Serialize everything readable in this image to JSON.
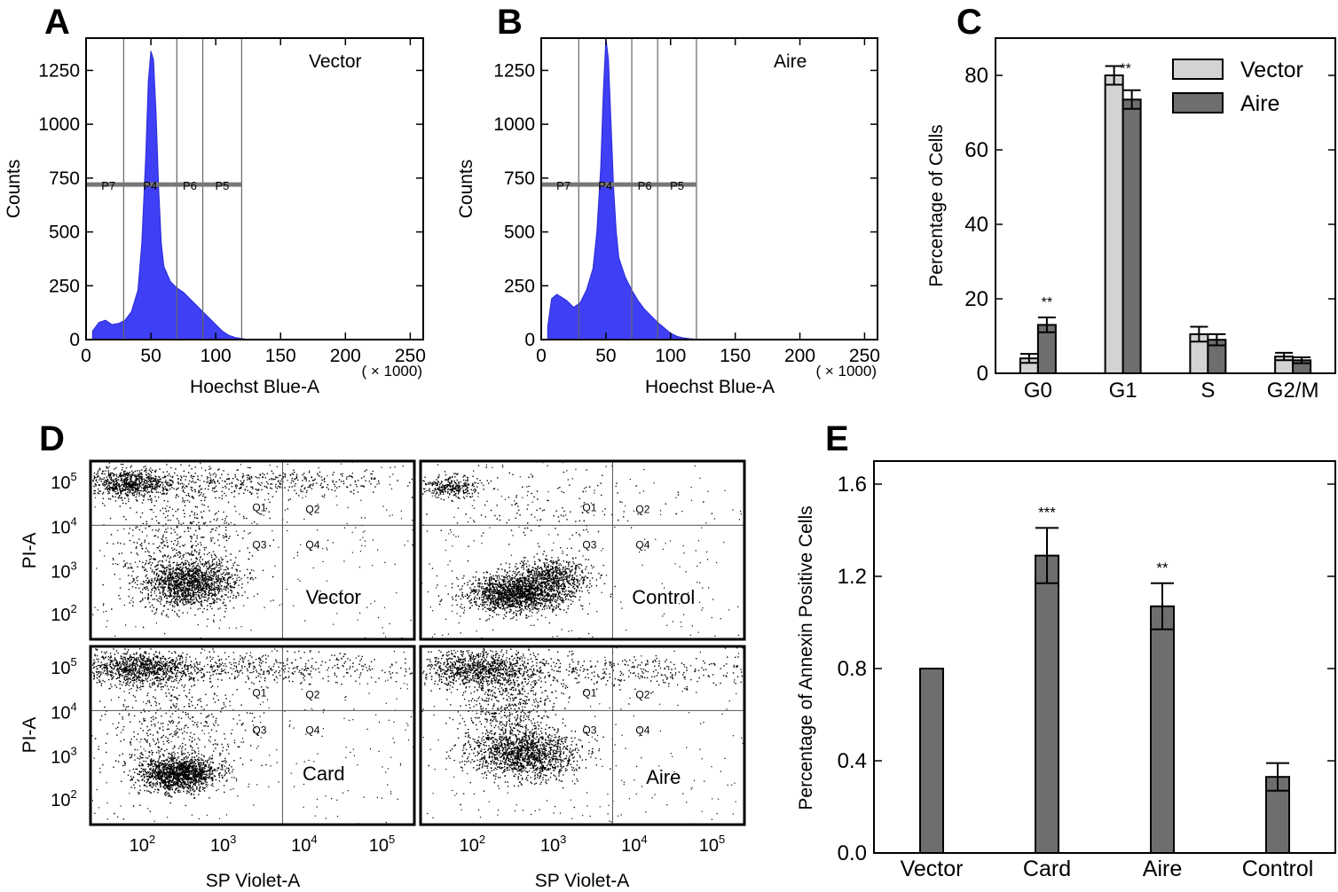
{
  "panels": {
    "A": {
      "letter": "A",
      "label": "Vector",
      "xlabel": "Hoechst Blue-A",
      "ylabel": "Counts",
      "x_scale_note": "( × 1000)",
      "x_ticks": [
        0,
        50,
        100,
        150,
        200,
        250
      ],
      "y_ticks": [
        0,
        250,
        500,
        750,
        1000,
        1250
      ],
      "gates": [
        "P7",
        "P4",
        "P6",
        "P5"
      ]
    },
    "B": {
      "letter": "B",
      "label": "Aire",
      "xlabel": "Hoechst Blue-A",
      "ylabel": "Counts",
      "x_scale_note": "( × 1000)",
      "x_ticks": [
        0,
        50,
        100,
        150,
        200,
        250
      ],
      "y_ticks": [
        0,
        250,
        500,
        750,
        1000,
        1250
      ],
      "gates": [
        "P7",
        "P4",
        "P6",
        "P5"
      ]
    },
    "C": {
      "letter": "C"
    },
    "D": {
      "letter": "D",
      "xlabel": "SP Violet-A",
      "ylabel": "PI-A",
      "x_ticks": [
        "10^2",
        "10^3",
        "10^4",
        "10^5"
      ],
      "y_ticks": [
        "10^5",
        "10^4",
        "10^3",
        "10^2"
      ],
      "quadrants": [
        "Q1",
        "Q2",
        "Q3",
        "Q4"
      ],
      "subplots": [
        "Vector",
        "Control",
        "Card",
        "Aire"
      ]
    },
    "E": {
      "letter": "E"
    }
  },
  "chart_data": [
    {
      "type": "area",
      "panel": "A",
      "xlabel": "Hoechst Blue-A",
      "ylabel": "Counts",
      "xlim": [
        0,
        260
      ],
      "ylim": [
        0,
        1400
      ],
      "x": [
        5,
        10,
        15,
        20,
        25,
        30,
        35,
        40,
        43,
        46,
        48,
        50,
        52,
        54,
        56,
        58,
        60,
        65,
        70,
        75,
        80,
        85,
        90,
        95,
        100,
        105,
        110,
        115,
        120,
        125
      ],
      "y": [
        40,
        80,
        90,
        70,
        75,
        90,
        130,
        230,
        450,
        850,
        1200,
        1340,
        1300,
        1050,
        700,
        450,
        340,
        270,
        240,
        220,
        190,
        160,
        130,
        100,
        70,
        40,
        20,
        10,
        5,
        0
      ],
      "gate_positions": [
        29,
        70,
        90,
        120
      ],
      "gate_level": 720,
      "color": "#3f3ff5"
    },
    {
      "type": "area",
      "panel": "B",
      "xlabel": "Hoechst Blue-A",
      "ylabel": "Counts",
      "xlim": [
        0,
        260
      ],
      "ylim": [
        0,
        1400
      ],
      "x": [
        5,
        8,
        12,
        15,
        20,
        25,
        30,
        35,
        40,
        43,
        46,
        48,
        50,
        52,
        54,
        56,
        58,
        60,
        65,
        70,
        75,
        80,
        85,
        90,
        95,
        100,
        105,
        110,
        115,
        120,
        130
      ],
      "y": [
        60,
        190,
        210,
        200,
        180,
        150,
        170,
        230,
        330,
        500,
        800,
        1150,
        1400,
        1300,
        1000,
        700,
        500,
        380,
        290,
        230,
        180,
        140,
        110,
        80,
        55,
        30,
        15,
        8,
        4,
        2,
        0
      ],
      "gate_positions": [
        29,
        70,
        90,
        120
      ],
      "gate_level": 720,
      "color": "#3f3ff5"
    },
    {
      "type": "bar",
      "panel": "C",
      "categories": [
        "G0",
        "G1",
        "S",
        "G2/M"
      ],
      "ylabel": "Percentage of Cells",
      "ylim": [
        0,
        90
      ],
      "y_ticks": [
        0,
        20,
        40,
        60,
        80
      ],
      "legend_position": "top-right",
      "series": [
        {
          "name": "Vector",
          "values": [
            4,
            80,
            10.5,
            4.5
          ],
          "errors": [
            1.2,
            2.5,
            2,
            1
          ],
          "color": "#d3d3d3"
        },
        {
          "name": "Aire",
          "values": [
            13,
            73.5,
            9,
            3.5
          ],
          "errors": [
            2,
            2.5,
            1.5,
            0.8
          ],
          "color": "#6e6e6e"
        }
      ],
      "annotations": [
        {
          "category": "G0",
          "text": "**"
        },
        {
          "category": "G1",
          "text": "**"
        }
      ]
    },
    {
      "type": "bar",
      "panel": "E",
      "categories": [
        "Vector",
        "Card",
        "Aire",
        "Control"
      ],
      "ylabel": "Percentage of Annexin Positive Cells",
      "ylim": [
        0,
        1.7
      ],
      "y_ticks": [
        "0.0",
        "0.4",
        "0.8",
        "1.2",
        "1.6"
      ],
      "series": [
        {
          "values": [
            0.8,
            1.29,
            1.07,
            0.33
          ],
          "errors": [
            0,
            0.12,
            0.1,
            0.06
          ],
          "color": "#6e6e6e"
        }
      ],
      "annotations": [
        {
          "category": "Card",
          "text": "***"
        },
        {
          "category": "Aire",
          "text": "**"
        }
      ]
    }
  ]
}
